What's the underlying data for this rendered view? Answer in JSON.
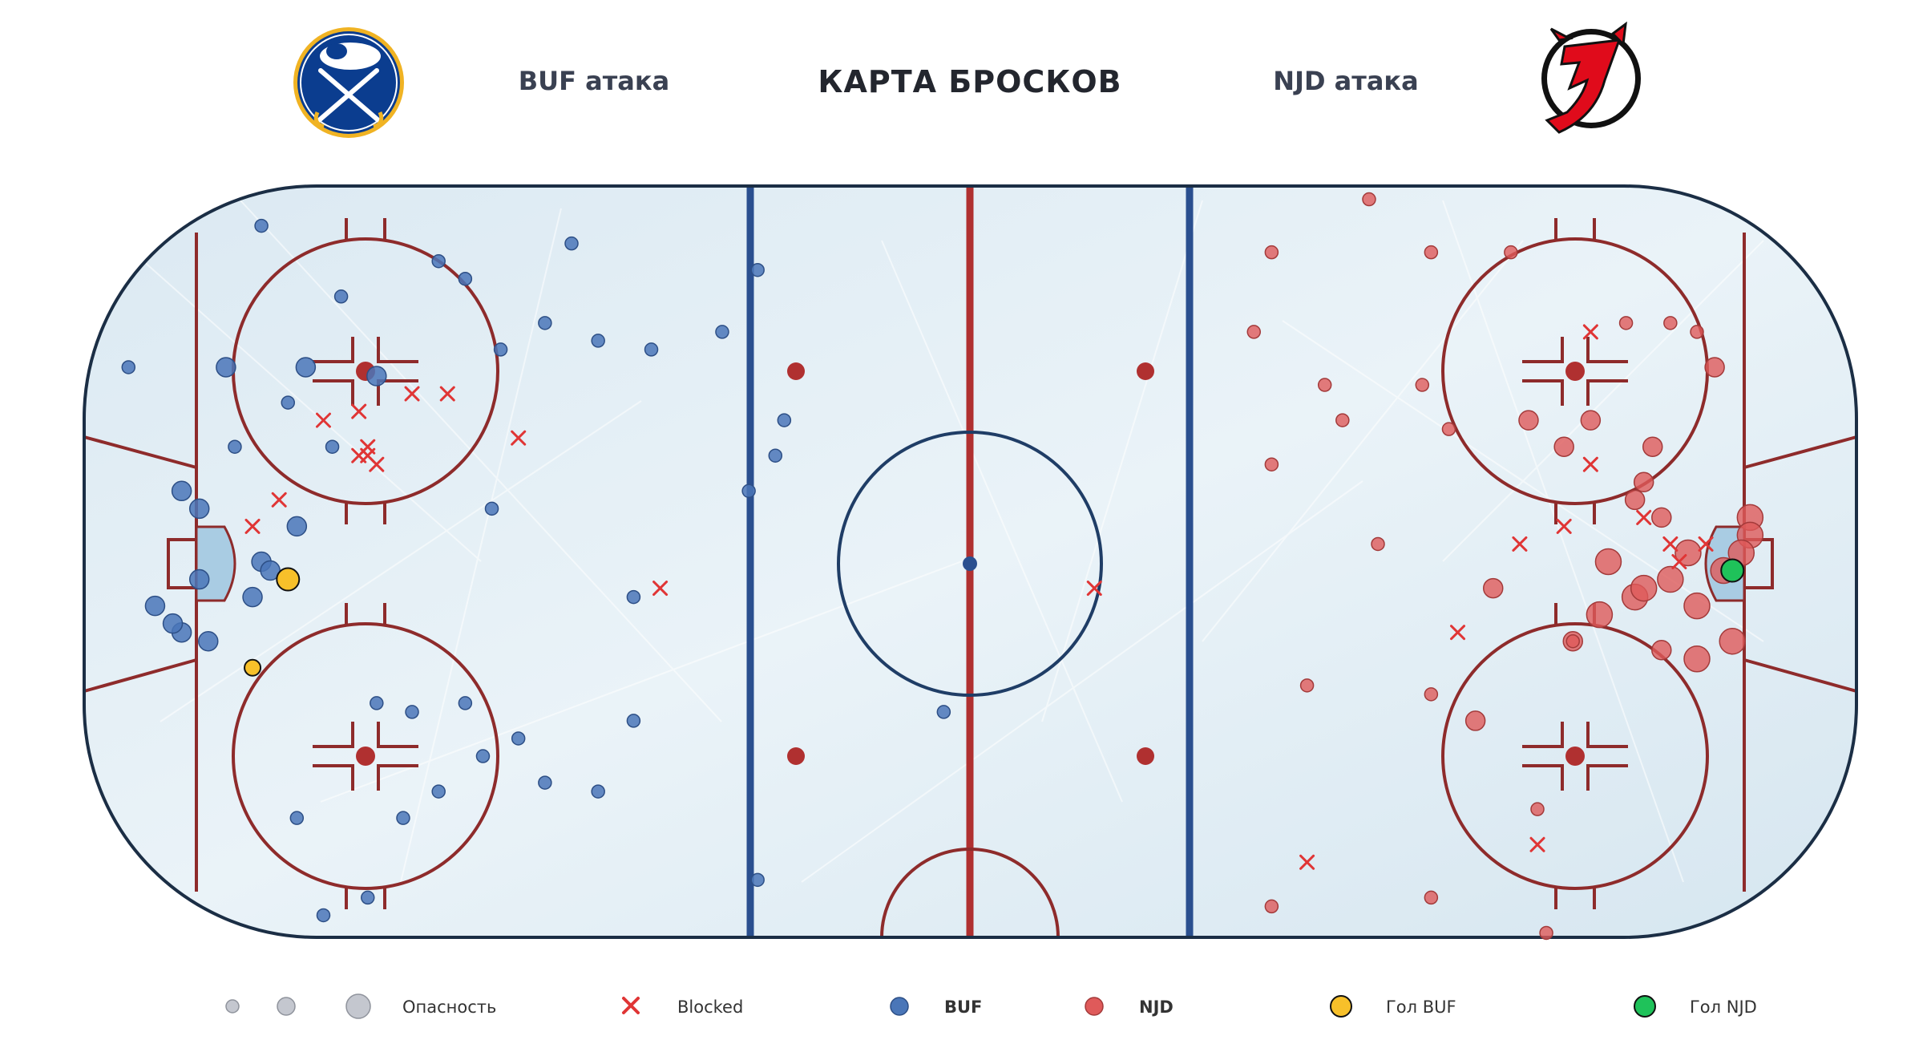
{
  "header": {
    "title": "КАРТА БРОСКОВ",
    "left_label": "BUF атака",
    "right_label": "NJD атака"
  },
  "legend": {
    "danger": "Опасность",
    "blocked": "Blocked",
    "buf": "BUF",
    "njd": "NJD",
    "goal_buf": "Гол BUF",
    "goal_njd": "Гол NJD"
  },
  "colors": {
    "buf": "#4a76b8",
    "njd": "#df5a5a",
    "blocked": "#e03535",
    "goal_buf": "#f7c02a",
    "goal_njd": "#1fc25a",
    "rink_red": "#8e2b2b",
    "blue_line": "#2a4f8f",
    "board": "#1b2e45"
  },
  "logos": {
    "left": "buffalo-sabres-logo",
    "right": "new-jersey-devils-logo"
  },
  "chart_data": {
    "type": "scatter",
    "title": "КАРТА БРОСКОВ",
    "xlim": [
      -100,
      100
    ],
    "ylim": [
      -42.5,
      42.5
    ],
    "size_levels": [
      1,
      2,
      3
    ],
    "series": [
      {
        "name": "BUF",
        "marker": "circle",
        "points": [
          [
            -95,
            22,
            1
          ],
          [
            -80,
            38,
            1
          ],
          [
            -71,
            30,
            1
          ],
          [
            -60,
            34,
            1
          ],
          [
            -57,
            32,
            1
          ],
          [
            -45,
            36,
            1
          ],
          [
            -48,
            27,
            1
          ],
          [
            -42,
            25,
            1
          ],
          [
            -24,
            33,
            1
          ],
          [
            -28,
            26,
            1
          ],
          [
            -53,
            24,
            1
          ],
          [
            -36,
            24,
            1
          ],
          [
            -21,
            16,
            1
          ],
          [
            -22,
            12,
            1
          ],
          [
            -25,
            8,
            1
          ],
          [
            -72,
            13,
            1
          ],
          [
            -83,
            13,
            1
          ],
          [
            -75,
            22,
            2
          ],
          [
            -77,
            18,
            1
          ],
          [
            -67,
            21,
            2
          ],
          [
            -84,
            22,
            2
          ],
          [
            -89,
            8,
            2
          ],
          [
            -87,
            6,
            2
          ],
          [
            -76,
            4,
            2
          ],
          [
            -80,
            0,
            2
          ],
          [
            -54,
            6,
            1
          ],
          [
            -81,
            -4,
            2
          ],
          [
            -92,
            -5,
            2
          ],
          [
            -89,
            -8,
            2
          ],
          [
            -86,
            -9,
            2
          ],
          [
            -90,
            -7,
            2
          ],
          [
            -87,
            -2,
            2
          ],
          [
            -79,
            -1,
            2
          ],
          [
            -67,
            -16,
            1
          ],
          [
            -63,
            -17,
            1
          ],
          [
            -57,
            -16,
            1
          ],
          [
            -51,
            -20,
            1
          ],
          [
            -48,
            -25,
            1
          ],
          [
            -60,
            -26,
            1
          ],
          [
            -64,
            -29,
            1
          ],
          [
            -55,
            -22,
            1
          ],
          [
            -68,
            -38,
            1
          ],
          [
            -76,
            -29,
            1
          ],
          [
            -42,
            -26,
            1
          ],
          [
            -38,
            -4,
            1
          ],
          [
            -73,
            -40,
            1
          ],
          [
            -38,
            -18,
            1
          ],
          [
            -24,
            -36,
            1
          ],
          [
            -3,
            -17,
            1
          ]
        ]
      },
      {
        "name": "NJD",
        "marker": "circle",
        "points": [
          [
            45,
            41,
            1
          ],
          [
            34,
            35,
            1
          ],
          [
            52,
            35,
            1
          ],
          [
            61,
            35,
            1
          ],
          [
            32,
            26,
            1
          ],
          [
            40,
            20,
            1
          ],
          [
            42,
            16,
            1
          ],
          [
            34,
            11,
            1
          ],
          [
            46,
            2,
            1
          ],
          [
            51,
            20,
            1
          ],
          [
            54,
            15,
            1
          ],
          [
            63,
            16,
            2
          ],
          [
            67,
            13,
            2
          ],
          [
            70,
            16,
            2
          ],
          [
            77,
            13,
            2
          ],
          [
            74,
            27,
            1
          ],
          [
            79,
            27,
            1
          ],
          [
            82,
            26,
            1
          ],
          [
            84,
            22,
            2
          ],
          [
            76,
            9,
            2
          ],
          [
            78,
            5,
            2
          ],
          [
            75,
            7,
            2
          ],
          [
            88,
            5,
            3
          ],
          [
            88,
            3,
            3
          ],
          [
            87,
            1,
            3
          ],
          [
            85,
            -1,
            3
          ],
          [
            81,
            1,
            3
          ],
          [
            79,
            -2,
            3
          ],
          [
            72,
            0,
            3
          ],
          [
            75,
            -4,
            3
          ],
          [
            76,
            -3,
            3
          ],
          [
            71,
            -6,
            3
          ],
          [
            82,
            -5,
            3
          ],
          [
            86,
            -9,
            3
          ],
          [
            82,
            -11,
            3
          ],
          [
            78,
            -10,
            2
          ],
          [
            68,
            -9,
            2
          ],
          [
            59,
            -3,
            2
          ],
          [
            68,
            -9,
            1
          ],
          [
            57,
            -18,
            2
          ],
          [
            52,
            -15,
            1
          ],
          [
            38,
            -14,
            1
          ],
          [
            64,
            -28,
            1
          ],
          [
            34,
            -39,
            1
          ],
          [
            52,
            -38,
            1
          ],
          [
            65,
            -42,
            1
          ]
        ]
      },
      {
        "name": "Blocked",
        "marker": "x",
        "points": [
          [
            -73,
            16
          ],
          [
            -69,
            17
          ],
          [
            -63,
            19
          ],
          [
            -59,
            19
          ],
          [
            -68,
            13
          ],
          [
            -68,
            12
          ],
          [
            -67,
            11
          ],
          [
            -69,
            12
          ],
          [
            -78,
            7
          ],
          [
            -81,
            4
          ],
          [
            -51,
            14
          ],
          [
            -35,
            -3
          ],
          [
            14,
            -3
          ],
          [
            70,
            26
          ],
          [
            70,
            11
          ],
          [
            62,
            2
          ],
          [
            67,
            4
          ],
          [
            76,
            5
          ],
          [
            83,
            2
          ],
          [
            80,
            0
          ],
          [
            79,
            2
          ],
          [
            55,
            -8
          ],
          [
            64,
            -32
          ],
          [
            38,
            -34
          ]
        ]
      },
      {
        "name": "Гол BUF",
        "marker": "circle",
        "points": [
          [
            -77,
            -2,
            2
          ],
          [
            -81,
            -12,
            1
          ]
        ]
      },
      {
        "name": "Гол NJD",
        "marker": "circle",
        "points": [
          [
            86,
            -1,
            2
          ]
        ]
      }
    ]
  }
}
